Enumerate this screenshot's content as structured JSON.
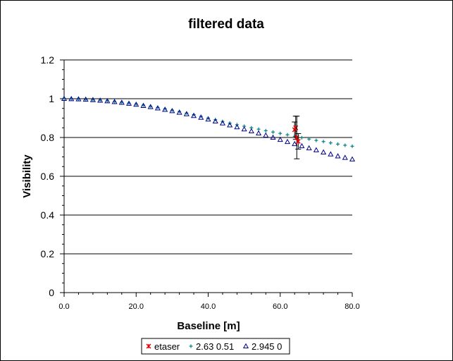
{
  "chart_data": {
    "type": "scatter",
    "title": "filtered data",
    "xlabel": "Baseline [m]",
    "ylabel": "Visibility",
    "xlim": [
      0,
      80
    ],
    "ylim": [
      0,
      1.2
    ],
    "x_ticks": [
      "0.0",
      "20.0",
      "40.0",
      "60.0",
      "80.0"
    ],
    "y_ticks": [
      "0",
      "0.2",
      "0.4",
      "0.6",
      "0.8",
      "1",
      "1.2"
    ],
    "grid": "horizontal",
    "legend_position": "bottom",
    "series": [
      {
        "name": "etaser",
        "marker": "asterisk",
        "color": "#e00000",
        "points": [
          {
            "x": 64.0,
            "y": 0.84,
            "err": 0.04
          },
          {
            "x": 64.3,
            "y": 0.85,
            "err": 0.06
          },
          {
            "x": 64.6,
            "y": 0.8,
            "err": 0.11
          },
          {
            "x": 65.0,
            "y": 0.78,
            "err": 0.04
          }
        ]
      },
      {
        "name": "2.63 0.51",
        "marker": "plus",
        "color": "#008080",
        "x": [
          0,
          2,
          4,
          6,
          8,
          10,
          12,
          14,
          16,
          18,
          20,
          22,
          24,
          26,
          28,
          30,
          32,
          34,
          36,
          38,
          40,
          42,
          44,
          46,
          48,
          50,
          52,
          54,
          56,
          58,
          60,
          62,
          64,
          66,
          68,
          70,
          72,
          74,
          76,
          78,
          80
        ],
        "y": [
          1.0,
          0.999,
          0.998,
          0.996,
          0.994,
          0.992,
          0.989,
          0.985,
          0.981,
          0.977,
          0.972,
          0.967,
          0.961,
          0.955,
          0.948,
          0.941,
          0.934,
          0.926,
          0.918,
          0.909,
          0.9,
          0.892,
          0.883,
          0.874,
          0.866,
          0.858,
          0.85,
          0.843,
          0.835,
          0.828,
          0.821,
          0.814,
          0.806,
          0.799,
          0.792,
          0.785,
          0.779,
          0.772,
          0.766,
          0.76,
          0.755
        ]
      },
      {
        "name": "2.945 0",
        "marker": "triangle",
        "color": "#00008b",
        "x": [
          0,
          2,
          4,
          6,
          8,
          10,
          12,
          14,
          16,
          18,
          20,
          22,
          24,
          26,
          28,
          30,
          32,
          34,
          36,
          38,
          40,
          42,
          44,
          46,
          48,
          50,
          52,
          54,
          56,
          58,
          60,
          62,
          64,
          66,
          68,
          70,
          72,
          74,
          76,
          78,
          80
        ],
        "y": [
          1.0,
          0.999,
          0.998,
          0.996,
          0.994,
          0.991,
          0.988,
          0.984,
          0.98,
          0.975,
          0.97,
          0.964,
          0.958,
          0.951,
          0.944,
          0.937,
          0.929,
          0.921,
          0.912,
          0.903,
          0.894,
          0.884,
          0.874,
          0.864,
          0.854,
          0.843,
          0.833,
          0.822,
          0.811,
          0.8,
          0.789,
          0.778,
          0.767,
          0.756,
          0.745,
          0.735,
          0.724,
          0.714,
          0.704,
          0.696,
          0.688
        ]
      }
    ]
  }
}
